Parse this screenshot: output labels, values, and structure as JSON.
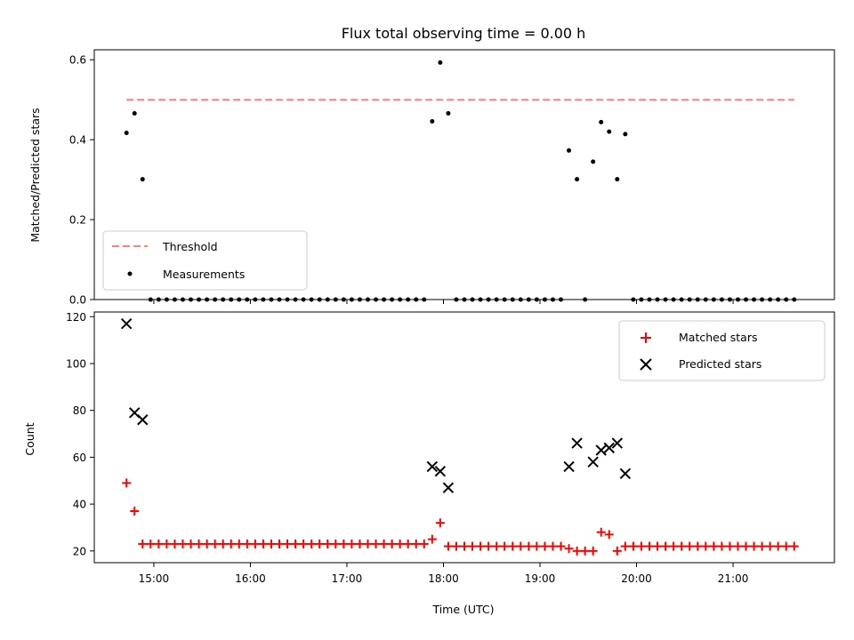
{
  "chart_data": [
    {
      "type": "scatter",
      "title": "Flux total observing time = 0.00 h",
      "xlabel": "",
      "ylabel": "Matched/Predicted stars",
      "xlim": [
        "14:23",
        "22:03"
      ],
      "ylim": [
        0,
        0.625
      ],
      "yticks": [
        "0.0",
        "0.2",
        "0.4",
        "0.6"
      ],
      "xticks": [
        "15:00",
        "16:00",
        "17:00",
        "18:00",
        "19:00",
        "20:00",
        "21:00"
      ],
      "threshold": {
        "name": "Threshold",
        "value": 0.5,
        "x_start": "14:43",
        "x_end": "21:38",
        "color": "#ff7f7f"
      },
      "series": [
        {
          "name": "Measurements",
          "color": "#000000",
          "points": [
            [
              "14:43",
              0.417
            ],
            [
              "14:48",
              0.466
            ],
            [
              "14:53",
              0.301
            ],
            [
              "14:58",
              0.0
            ],
            [
              "15:03",
              0.0
            ],
            [
              "15:08",
              0.0
            ],
            [
              "15:13",
              0.0
            ],
            [
              "15:18",
              0.0
            ],
            [
              "15:23",
              0.0
            ],
            [
              "15:28",
              0.0
            ],
            [
              "15:33",
              0.0
            ],
            [
              "15:38",
              0.0
            ],
            [
              "15:43",
              0.0
            ],
            [
              "15:48",
              0.0
            ],
            [
              "15:53",
              0.0
            ],
            [
              "15:58",
              0.0
            ],
            [
              "16:03",
              0.0
            ],
            [
              "16:08",
              0.0
            ],
            [
              "16:13",
              0.0
            ],
            [
              "16:18",
              0.0
            ],
            [
              "16:23",
              0.0
            ],
            [
              "16:28",
              0.0
            ],
            [
              "16:33",
              0.0
            ],
            [
              "16:38",
              0.0
            ],
            [
              "16:43",
              0.0
            ],
            [
              "16:48",
              0.0
            ],
            [
              "16:53",
              0.0
            ],
            [
              "16:58",
              0.0
            ],
            [
              "17:03",
              0.0
            ],
            [
              "17:08",
              0.0
            ],
            [
              "17:13",
              0.0
            ],
            [
              "17:18",
              0.0
            ],
            [
              "17:23",
              0.0
            ],
            [
              "17:28",
              0.0
            ],
            [
              "17:33",
              0.0
            ],
            [
              "17:38",
              0.0
            ],
            [
              "17:43",
              0.0
            ],
            [
              "17:48",
              0.0
            ],
            [
              "17:53",
              0.446
            ],
            [
              "17:58",
              0.593
            ],
            [
              "18:03",
              0.466
            ],
            [
              "18:08",
              0.0
            ],
            [
              "18:13",
              0.0
            ],
            [
              "18:18",
              0.0
            ],
            [
              "18:23",
              0.0
            ],
            [
              "18:28",
              0.0
            ],
            [
              "18:33",
              0.0
            ],
            [
              "18:38",
              0.0
            ],
            [
              "18:43",
              0.0
            ],
            [
              "18:48",
              0.0
            ],
            [
              "18:53",
              0.0
            ],
            [
              "18:58",
              0.0
            ],
            [
              "19:03",
              0.0
            ],
            [
              "19:08",
              0.0
            ],
            [
              "19:13",
              0.0
            ],
            [
              "19:18",
              0.373
            ],
            [
              "19:23",
              0.301
            ],
            [
              "19:28",
              0.0
            ],
            [
              "19:33",
              0.345
            ],
            [
              "19:38",
              0.444
            ],
            [
              "19:43",
              0.42
            ],
            [
              "19:48",
              0.301
            ],
            [
              "19:53",
              0.414
            ],
            [
              "19:58",
              0.0
            ],
            [
              "20:03",
              0.0
            ],
            [
              "20:08",
              0.0
            ],
            [
              "20:13",
              0.0
            ],
            [
              "20:18",
              0.0
            ],
            [
              "20:23",
              0.0
            ],
            [
              "20:28",
              0.0
            ],
            [
              "20:33",
              0.0
            ],
            [
              "20:38",
              0.0
            ],
            [
              "20:43",
              0.0
            ],
            [
              "20:48",
              0.0
            ],
            [
              "20:53",
              0.0
            ],
            [
              "20:58",
              0.0
            ],
            [
              "21:03",
              0.0
            ],
            [
              "21:08",
              0.0
            ],
            [
              "21:13",
              0.0
            ],
            [
              "21:18",
              0.0
            ],
            [
              "21:23",
              0.0
            ],
            [
              "21:28",
              0.0
            ],
            [
              "21:33",
              0.0
            ],
            [
              "21:38",
              0.0
            ]
          ]
        }
      ],
      "legend": "lower-left"
    },
    {
      "type": "scatter",
      "title": "",
      "xlabel": "Time (UTC)",
      "ylabel": "Count",
      "xlim": [
        "14:23",
        "22:03"
      ],
      "ylim": [
        15,
        122
      ],
      "yticks": [
        "20",
        "40",
        "60",
        "80",
        "100",
        "120"
      ],
      "xticks": [
        "15:00",
        "16:00",
        "17:00",
        "18:00",
        "19:00",
        "20:00",
        "21:00"
      ],
      "legend": "upper-right",
      "series": [
        {
          "name": "Matched stars",
          "marker": "plus",
          "color": "#ff0000",
          "points": [
            [
              "14:43",
              49
            ],
            [
              "14:48",
              37
            ],
            [
              "14:53",
              23
            ],
            [
              "14:58",
              23
            ],
            [
              "15:03",
              23
            ],
            [
              "15:08",
              23
            ],
            [
              "15:13",
              23
            ],
            [
              "15:18",
              23
            ],
            [
              "15:23",
              23
            ],
            [
              "15:28",
              23
            ],
            [
              "15:33",
              23
            ],
            [
              "15:38",
              23
            ],
            [
              "15:43",
              23
            ],
            [
              "15:48",
              23
            ],
            [
              "15:53",
              23
            ],
            [
              "15:58",
              23
            ],
            [
              "16:03",
              23
            ],
            [
              "16:08",
              23
            ],
            [
              "16:13",
              23
            ],
            [
              "16:18",
              23
            ],
            [
              "16:23",
              23
            ],
            [
              "16:28",
              23
            ],
            [
              "16:33",
              23
            ],
            [
              "16:38",
              23
            ],
            [
              "16:43",
              23
            ],
            [
              "16:48",
              23
            ],
            [
              "16:53",
              23
            ],
            [
              "16:58",
              23
            ],
            [
              "17:03",
              23
            ],
            [
              "17:08",
              23
            ],
            [
              "17:13",
              23
            ],
            [
              "17:18",
              23
            ],
            [
              "17:23",
              23
            ],
            [
              "17:28",
              23
            ],
            [
              "17:33",
              23
            ],
            [
              "17:38",
              23
            ],
            [
              "17:43",
              23
            ],
            [
              "17:48",
              23
            ],
            [
              "17:53",
              25
            ],
            [
              "17:58",
              32
            ],
            [
              "18:03",
              22
            ],
            [
              "18:08",
              22
            ],
            [
              "18:13",
              22
            ],
            [
              "18:18",
              22
            ],
            [
              "18:23",
              22
            ],
            [
              "18:28",
              22
            ],
            [
              "18:33",
              22
            ],
            [
              "18:38",
              22
            ],
            [
              "18:43",
              22
            ],
            [
              "18:48",
              22
            ],
            [
              "18:53",
              22
            ],
            [
              "18:58",
              22
            ],
            [
              "19:03",
              22
            ],
            [
              "19:08",
              22
            ],
            [
              "19:13",
              22
            ],
            [
              "19:18",
              21
            ],
            [
              "19:23",
              20
            ],
            [
              "19:28",
              20
            ],
            [
              "19:33",
              20
            ],
            [
              "19:38",
              28
            ],
            [
              "19:43",
              27
            ],
            [
              "19:48",
              20
            ],
            [
              "19:53",
              22
            ],
            [
              "19:58",
              22
            ],
            [
              "20:03",
              22
            ],
            [
              "20:08",
              22
            ],
            [
              "20:13",
              22
            ],
            [
              "20:18",
              22
            ],
            [
              "20:23",
              22
            ],
            [
              "20:28",
              22
            ],
            [
              "20:33",
              22
            ],
            [
              "20:38",
              22
            ],
            [
              "20:43",
              22
            ],
            [
              "20:48",
              22
            ],
            [
              "20:53",
              22
            ],
            [
              "20:58",
              22
            ],
            [
              "21:03",
              22
            ],
            [
              "21:08",
              22
            ],
            [
              "21:13",
              22
            ],
            [
              "21:18",
              22
            ],
            [
              "21:23",
              22
            ],
            [
              "21:28",
              22
            ],
            [
              "21:33",
              22
            ],
            [
              "21:38",
              22
            ]
          ]
        },
        {
          "name": "Predicted stars",
          "marker": "x",
          "color": "#000000",
          "points": [
            [
              "14:43",
              117
            ],
            [
              "14:48",
              79
            ],
            [
              "14:53",
              76
            ],
            [
              "17:53",
              56
            ],
            [
              "17:58",
              54
            ],
            [
              "18:03",
              47
            ],
            [
              "19:18",
              56
            ],
            [
              "19:23",
              66
            ],
            [
              "19:33",
              58
            ],
            [
              "19:38",
              63
            ],
            [
              "19:43",
              64
            ],
            [
              "19:48",
              66
            ],
            [
              "19:53",
              53
            ]
          ]
        }
      ]
    }
  ]
}
